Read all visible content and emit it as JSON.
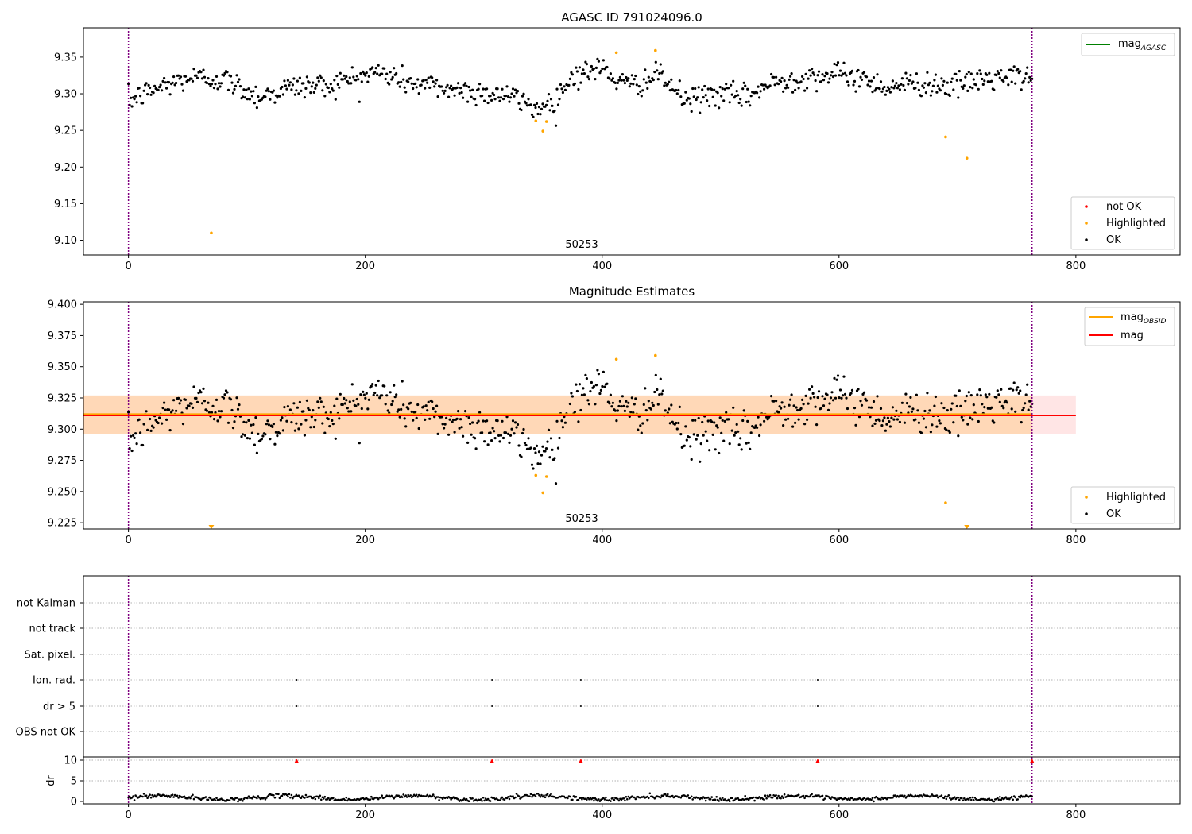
{
  "chart_data": [
    {
      "type": "scatter",
      "title": "AGASC ID 791024096.0",
      "annotation": "50253",
      "xlim": [
        -38,
        888
      ],
      "ylim": [
        9.08,
        9.39
      ],
      "xticks": [
        0,
        200,
        400,
        600,
        800
      ],
      "yticks": [
        9.1,
        9.15,
        9.2,
        9.25,
        9.3,
        9.35
      ],
      "vlines": [
        0,
        763
      ],
      "legend_lines": [
        {
          "label": "mag",
          "sub": "AGASC",
          "color": "#008000"
        }
      ],
      "legend_points": [
        {
          "label": "not OK",
          "color": "#ff0000"
        },
        {
          "label": "Highlighted",
          "color": "#ffa500"
        },
        {
          "label": "OK",
          "color": "#000000"
        }
      ],
      "highlighted": [
        [
          70,
          9.11
        ],
        [
          344,
          9.263
        ],
        [
          350,
          9.249
        ],
        [
          353,
          9.262
        ],
        [
          412,
          9.356
        ],
        [
          445,
          9.359
        ],
        [
          690,
          9.241
        ],
        [
          708,
          9.212
        ]
      ],
      "series_ok": {
        "n": 760,
        "x_max": 763,
        "level": 9.31
      }
    },
    {
      "type": "scatter",
      "title": "Magnitude Estimates",
      "annotation": "50253",
      "xlim": [
        -38,
        888
      ],
      "ylim": [
        9.22,
        9.402
      ],
      "xticks": [
        0,
        200,
        400,
        600,
        800
      ],
      "yticks": [
        9.225,
        9.25,
        9.275,
        9.3,
        9.325,
        9.35,
        9.375,
        9.4
      ],
      "ytick_labels": [
        "9.225",
        "9.250",
        "9.275",
        "9.300",
        "9.325",
        "9.350",
        "9.375",
        "9.400"
      ],
      "vlines": [
        0,
        763
      ],
      "mag": 9.311,
      "mag_band": [
        9.296,
        9.327
      ],
      "mag_obsid": 9.312,
      "mag_obsid_band": [
        9.296,
        9.327
      ],
      "legend_lines": [
        {
          "label": "mag",
          "sub": "OBSID",
          "color": "#ffa500"
        },
        {
          "label": "mag",
          "sub": "",
          "color": "#ff0000"
        }
      ],
      "legend_points": [
        {
          "label": "Highlighted",
          "color": "#ffa500"
        },
        {
          "label": "OK",
          "color": "#000000"
        }
      ],
      "highlighted": [
        [
          344,
          9.263
        ],
        [
          350,
          9.249
        ],
        [
          353,
          9.262
        ],
        [
          412,
          9.356
        ],
        [
          445,
          9.359
        ],
        [
          690,
          9.241
        ]
      ],
      "clipped_markers": [
        70,
        708
      ]
    },
    {
      "type": "scatter",
      "xlim": [
        -38,
        888
      ],
      "xticks": [
        0,
        200,
        400,
        600,
        800
      ],
      "vlines": [
        0,
        763
      ],
      "flag_rows": [
        "not Kalman",
        "not track",
        "Sat. pixel.",
        "Ion. rad.",
        "dr > 5",
        "OBS not OK"
      ],
      "flag_points": {
        "Ion. rad.": [
          142,
          307,
          382,
          582
        ],
        "dr > 5": [
          142,
          307,
          382,
          582
        ]
      },
      "dr_ylabel": "dr",
      "dr_yticks": [
        0,
        5,
        10
      ],
      "dr_over_limit": [
        142,
        307,
        382,
        582,
        763
      ]
    }
  ]
}
